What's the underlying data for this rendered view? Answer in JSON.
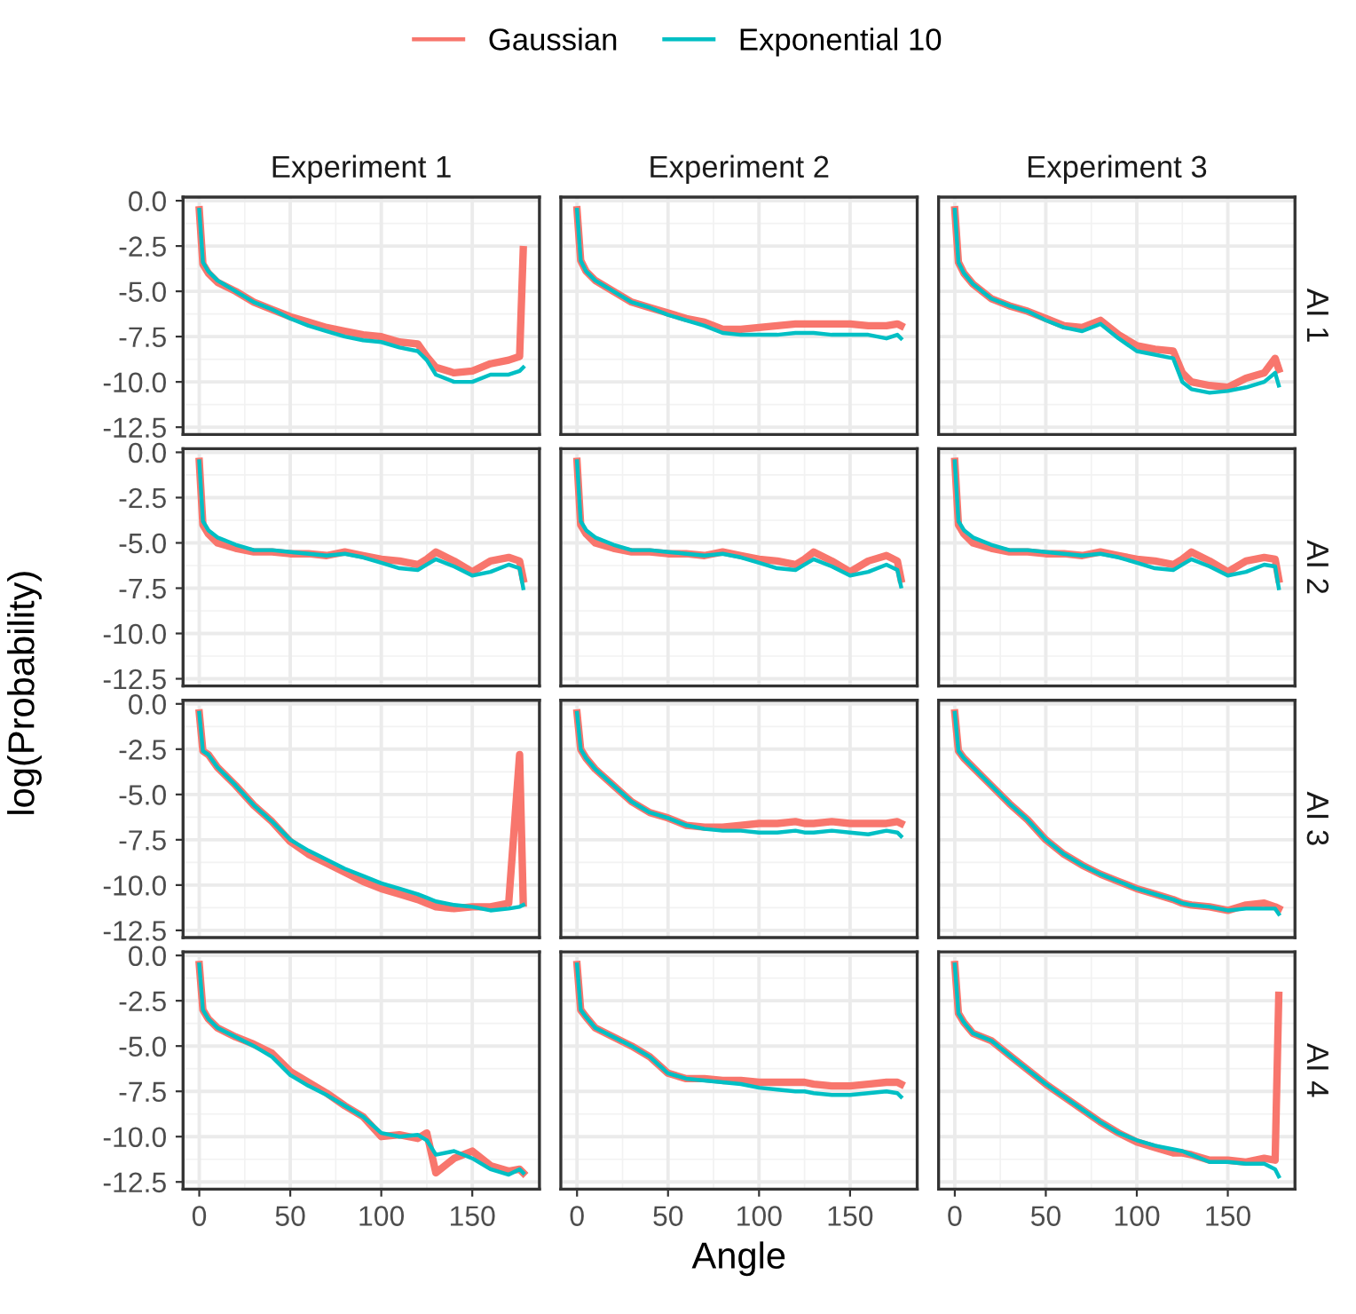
{
  "chart_data": [
    {
      "type": "line",
      "title": "Experiment 1",
      "legend": "top",
      "grid": true,
      "tick_labels": "y",
      "xlim": [
        -8.9,
        186.9
      ],
      "ylim": [
        -12.9,
        0.2
      ],
      "xticks": [
        0,
        50,
        100,
        150
      ],
      "yticks": [
        {
          "value": 0,
          "label": "0.0"
        },
        {
          "value": -2.5,
          "label": "-2.5"
        },
        {
          "value": -5,
          "label": "-5.0"
        },
        {
          "value": -7.5,
          "label": "-7.5"
        },
        {
          "value": -10,
          "label": "-10.0"
        },
        {
          "value": -12.5,
          "label": "-12.5"
        }
      ],
      "x": [
        0,
        2,
        5,
        10,
        20,
        30,
        40,
        50,
        60,
        70,
        80,
        90,
        100,
        110,
        120,
        125,
        130,
        140,
        150,
        160,
        170,
        176,
        178
      ],
      "series": [
        {
          "name": "Gaussian",
          "color": "#f8766d",
          "values": [
            -0.5,
            -3.5,
            -4.0,
            -4.5,
            -5.0,
            -5.6,
            -6.0,
            -6.4,
            -6.7,
            -7.0,
            -7.2,
            -7.4,
            -7.5,
            -7.8,
            -7.9,
            -8.6,
            -9.2,
            -9.5,
            -9.4,
            -9.0,
            -8.8,
            -8.6,
            -2.7
          ]
        },
        {
          "name": "Exponential 10",
          "color": "#00bfc4",
          "values": [
            -0.5,
            -3.4,
            -3.9,
            -4.4,
            -5.0,
            -5.6,
            -6.0,
            -6.5,
            -6.9,
            -7.2,
            -7.5,
            -7.7,
            -7.8,
            -8.1,
            -8.3,
            -8.8,
            -9.6,
            -10.0,
            -10.0,
            -9.6,
            -9.6,
            -9.4,
            -9.2
          ]
        }
      ]
    },
    {
      "type": "line",
      "title": "Experiment 2",
      "grid": true,
      "tick_labels": false,
      "xlim": [
        -8.9,
        186.9
      ],
      "ylim": [
        -12.9,
        0.2
      ],
      "xticks": [
        0,
        50,
        100,
        150
      ],
      "yticks": [
        0,
        -2.5,
        -5,
        -7.5,
        -10,
        -12.5
      ],
      "x": [
        0,
        2,
        5,
        10,
        20,
        30,
        40,
        50,
        60,
        70,
        80,
        90,
        100,
        110,
        120,
        125,
        130,
        140,
        150,
        160,
        170,
        176,
        178
      ],
      "series": [
        {
          "color": "#f8766d",
          "values": [
            -0.5,
            -3.3,
            -3.9,
            -4.4,
            -5.0,
            -5.6,
            -5.9,
            -6.2,
            -6.5,
            -6.7,
            -7.1,
            -7.1,
            -7.0,
            -6.9,
            -6.8,
            -6.8,
            -6.8,
            -6.8,
            -6.8,
            -6.9,
            -6.9,
            -6.8,
            -6.9
          ]
        },
        {
          "color": "#00bfc4",
          "values": [
            -0.5,
            -3.3,
            -3.9,
            -4.4,
            -5.0,
            -5.6,
            -5.9,
            -6.3,
            -6.6,
            -6.9,
            -7.3,
            -7.4,
            -7.4,
            -7.4,
            -7.3,
            -7.3,
            -7.3,
            -7.4,
            -7.4,
            -7.4,
            -7.6,
            -7.4,
            -7.6
          ]
        }
      ]
    },
    {
      "type": "line",
      "title": "Experiment 3",
      "y2label": "AI 1",
      "grid": true,
      "tick_labels": false,
      "xlim": [
        -8.9,
        186.9
      ],
      "ylim": [
        -12.9,
        0.2
      ],
      "xticks": [
        0,
        50,
        100,
        150
      ],
      "yticks": [
        0,
        -2.5,
        -5,
        -7.5,
        -10,
        -12.5
      ],
      "x": [
        0,
        2,
        5,
        10,
        20,
        30,
        40,
        50,
        60,
        70,
        80,
        90,
        100,
        110,
        120,
        125,
        130,
        140,
        150,
        160,
        170,
        176,
        178
      ],
      "series": [
        {
          "color": "#f8766d",
          "values": [
            -0.5,
            -3.4,
            -4.0,
            -4.6,
            -5.4,
            -5.8,
            -6.1,
            -6.5,
            -6.9,
            -7.0,
            -6.6,
            -7.4,
            -8.0,
            -8.2,
            -8.3,
            -9.5,
            -10.0,
            -10.2,
            -10.3,
            -9.8,
            -9.5,
            -8.7,
            -9.3
          ]
        },
        {
          "color": "#00bfc4",
          "values": [
            -0.5,
            -3.4,
            -4.0,
            -4.6,
            -5.4,
            -5.8,
            -6.1,
            -6.6,
            -7.0,
            -7.2,
            -6.8,
            -7.6,
            -8.3,
            -8.5,
            -8.7,
            -10.0,
            -10.4,
            -10.6,
            -10.5,
            -10.3,
            -10.0,
            -9.5,
            -10.2
          ]
        }
      ]
    },
    {
      "type": "line",
      "ylabel": "log(Probability)",
      "grid": true,
      "tick_labels": "y",
      "xlim": [
        -8.9,
        186.9
      ],
      "ylim": [
        -12.9,
        0.2
      ],
      "xticks": [
        0,
        50,
        100,
        150
      ],
      "yticks": [
        {
          "value": 0,
          "label": "0.0"
        },
        {
          "value": -2.5,
          "label": "-2.5"
        },
        {
          "value": -5,
          "label": "-5.0"
        },
        {
          "value": -7.5,
          "label": "-7.5"
        },
        {
          "value": -10,
          "label": "-10.0"
        },
        {
          "value": -12.5,
          "label": "-12.5"
        }
      ],
      "x": [
        0,
        2,
        5,
        10,
        20,
        30,
        40,
        50,
        60,
        70,
        80,
        90,
        100,
        110,
        120,
        125,
        130,
        140,
        150,
        160,
        170,
        176,
        178
      ],
      "series": [
        {
          "color": "#f8766d",
          "values": [
            -0.5,
            -4.0,
            -4.5,
            -5.0,
            -5.3,
            -5.5,
            -5.5,
            -5.6,
            -5.6,
            -5.7,
            -5.5,
            -5.7,
            -5.9,
            -6.0,
            -6.2,
            -5.9,
            -5.5,
            -6.0,
            -6.6,
            -6.0,
            -5.8,
            -6.0,
            -7.0
          ]
        },
        {
          "color": "#00bfc4",
          "values": [
            -0.5,
            -3.8,
            -4.3,
            -4.7,
            -5.1,
            -5.4,
            -5.4,
            -5.5,
            -5.6,
            -5.7,
            -5.6,
            -5.8,
            -6.1,
            -6.4,
            -6.5,
            -6.2,
            -5.9,
            -6.3,
            -6.8,
            -6.6,
            -6.2,
            -6.4,
            -7.5
          ]
        }
      ]
    },
    {
      "type": "line",
      "grid": true,
      "tick_labels": false,
      "xlim": [
        -8.9,
        186.9
      ],
      "ylim": [
        -12.9,
        0.2
      ],
      "xticks": [
        0,
        50,
        100,
        150
      ],
      "yticks": [
        0,
        -2.5,
        -5,
        -7.5,
        -10,
        -12.5
      ],
      "x": [
        0,
        2,
        5,
        10,
        20,
        30,
        40,
        50,
        60,
        70,
        80,
        90,
        100,
        110,
        120,
        125,
        130,
        140,
        150,
        160,
        170,
        176,
        178
      ],
      "series": [
        {
          "color": "#f8766d",
          "values": [
            -0.5,
            -4.0,
            -4.5,
            -5.0,
            -5.3,
            -5.5,
            -5.5,
            -5.6,
            -5.6,
            -5.7,
            -5.5,
            -5.7,
            -5.9,
            -6.0,
            -6.2,
            -5.9,
            -5.5,
            -6.0,
            -6.6,
            -6.0,
            -5.7,
            -6.0,
            -7.0
          ]
        },
        {
          "color": "#00bfc4",
          "values": [
            -0.5,
            -3.8,
            -4.3,
            -4.7,
            -5.1,
            -5.4,
            -5.4,
            -5.5,
            -5.6,
            -5.7,
            -5.6,
            -5.8,
            -6.1,
            -6.4,
            -6.5,
            -6.2,
            -5.9,
            -6.3,
            -6.8,
            -6.6,
            -6.2,
            -6.5,
            -7.4
          ]
        }
      ]
    },
    {
      "type": "line",
      "y2label": "AI 2",
      "grid": true,
      "tick_labels": false,
      "xlim": [
        -8.9,
        186.9
      ],
      "ylim": [
        -12.9,
        0.2
      ],
      "xticks": [
        0,
        50,
        100,
        150
      ],
      "yticks": [
        0,
        -2.5,
        -5,
        -7.5,
        -10,
        -12.5
      ],
      "x": [
        0,
        2,
        5,
        10,
        20,
        30,
        40,
        50,
        60,
        70,
        80,
        90,
        100,
        110,
        120,
        125,
        130,
        140,
        150,
        160,
        170,
        176,
        178
      ],
      "series": [
        {
          "color": "#f8766d",
          "values": [
            -0.5,
            -4.0,
            -4.5,
            -5.0,
            -5.3,
            -5.5,
            -5.5,
            -5.6,
            -5.6,
            -5.7,
            -5.5,
            -5.7,
            -5.9,
            -6.0,
            -6.2,
            -5.9,
            -5.5,
            -6.0,
            -6.6,
            -6.0,
            -5.8,
            -5.9,
            -7.0
          ]
        },
        {
          "color": "#00bfc4",
          "values": [
            -0.5,
            -3.8,
            -4.3,
            -4.7,
            -5.1,
            -5.4,
            -5.4,
            -5.5,
            -5.6,
            -5.7,
            -5.6,
            -5.8,
            -6.1,
            -6.4,
            -6.5,
            -6.2,
            -5.9,
            -6.3,
            -6.8,
            -6.6,
            -6.2,
            -6.3,
            -7.5
          ]
        }
      ]
    },
    {
      "type": "line",
      "grid": true,
      "tick_labels": "y",
      "xlim": [
        -8.9,
        186.9
      ],
      "ylim": [
        -12.9,
        0.2
      ],
      "xticks": [
        0,
        50,
        100,
        150
      ],
      "yticks": [
        {
          "value": 0,
          "label": "0.0"
        },
        {
          "value": -2.5,
          "label": "-2.5"
        },
        {
          "value": -5,
          "label": "-5.0"
        },
        {
          "value": -7.5,
          "label": "-7.5"
        },
        {
          "value": -10,
          "label": "-10.0"
        },
        {
          "value": -12.5,
          "label": "-12.5"
        }
      ],
      "x": [
        0,
        2,
        5,
        10,
        20,
        30,
        40,
        50,
        60,
        70,
        80,
        90,
        100,
        110,
        120,
        125,
        130,
        140,
        150,
        160,
        170,
        176,
        178
      ],
      "series": [
        {
          "color": "#f8766d",
          "values": [
            -0.5,
            -2.6,
            -2.8,
            -3.5,
            -4.5,
            -5.6,
            -6.5,
            -7.6,
            -8.3,
            -8.8,
            -9.3,
            -9.8,
            -10.2,
            -10.5,
            -10.8,
            -11.0,
            -11.2,
            -11.3,
            -11.2,
            -11.2,
            -11.0,
            -2.8,
            -11.0
          ]
        },
        {
          "color": "#00bfc4",
          "values": [
            -0.5,
            -2.6,
            -2.8,
            -3.5,
            -4.5,
            -5.6,
            -6.5,
            -7.5,
            -8.1,
            -8.6,
            -9.1,
            -9.5,
            -9.9,
            -10.2,
            -10.5,
            -10.7,
            -10.9,
            -11.1,
            -11.2,
            -11.4,
            -11.3,
            -11.2,
            -11.1
          ]
        }
      ]
    },
    {
      "type": "line",
      "grid": true,
      "tick_labels": false,
      "xlim": [
        -8.9,
        186.9
      ],
      "ylim": [
        -12.9,
        0.2
      ],
      "xticks": [
        0,
        50,
        100,
        150
      ],
      "yticks": [
        0,
        -2.5,
        -5,
        -7.5,
        -10,
        -12.5
      ],
      "x": [
        0,
        2,
        5,
        10,
        20,
        30,
        40,
        50,
        60,
        70,
        80,
        90,
        100,
        110,
        120,
        125,
        130,
        140,
        150,
        160,
        170,
        176,
        178
      ],
      "series": [
        {
          "color": "#f8766d",
          "values": [
            -0.5,
            -2.5,
            -3.0,
            -3.6,
            -4.5,
            -5.4,
            -6.0,
            -6.3,
            -6.7,
            -6.8,
            -6.8,
            -6.7,
            -6.6,
            -6.6,
            -6.5,
            -6.6,
            -6.6,
            -6.5,
            -6.6,
            -6.6,
            -6.6,
            -6.5,
            -6.6
          ]
        },
        {
          "color": "#00bfc4",
          "values": [
            -0.5,
            -2.5,
            -3.0,
            -3.6,
            -4.5,
            -5.4,
            -6.0,
            -6.3,
            -6.7,
            -6.9,
            -7.0,
            -7.0,
            -7.1,
            -7.1,
            -7.0,
            -7.1,
            -7.1,
            -7.0,
            -7.1,
            -7.2,
            -7.0,
            -7.1,
            -7.3
          ]
        }
      ]
    },
    {
      "type": "line",
      "y2label": "AI 3",
      "grid": true,
      "tick_labels": false,
      "xlim": [
        -8.9,
        186.9
      ],
      "ylim": [
        -12.9,
        0.2
      ],
      "xticks": [
        0,
        50,
        100,
        150
      ],
      "yticks": [
        0,
        -2.5,
        -5,
        -7.5,
        -10,
        -12.5
      ],
      "x": [
        0,
        2,
        5,
        10,
        20,
        30,
        40,
        50,
        60,
        70,
        80,
        90,
        100,
        110,
        120,
        125,
        130,
        140,
        150,
        160,
        170,
        176,
        178
      ],
      "series": [
        {
          "color": "#f8766d",
          "values": [
            -0.5,
            -2.6,
            -3.0,
            -3.5,
            -4.5,
            -5.5,
            -6.4,
            -7.5,
            -8.3,
            -8.9,
            -9.4,
            -9.8,
            -10.2,
            -10.5,
            -10.8,
            -11.0,
            -11.1,
            -11.2,
            -11.4,
            -11.1,
            -11.0,
            -11.2,
            -11.3
          ]
        },
        {
          "color": "#00bfc4",
          "values": [
            -0.5,
            -2.6,
            -3.0,
            -3.5,
            -4.5,
            -5.5,
            -6.4,
            -7.5,
            -8.3,
            -8.9,
            -9.4,
            -9.8,
            -10.2,
            -10.5,
            -10.8,
            -11.0,
            -11.1,
            -11.2,
            -11.4,
            -11.3,
            -11.3,
            -11.3,
            -11.6
          ]
        }
      ]
    },
    {
      "type": "line",
      "grid": true,
      "xlim": [
        -8.9,
        186.9
      ],
      "ylim": [
        -12.9,
        0.2
      ],
      "xticks": [
        0,
        50,
        100,
        150
      ],
      "yticks": [
        {
          "value": 0,
          "label": "0.0"
        },
        {
          "value": -2.5,
          "label": "-2.5"
        },
        {
          "value": -5,
          "label": "-5.0"
        },
        {
          "value": -7.5,
          "label": "-7.5"
        },
        {
          "value": -10,
          "label": "-10.0"
        },
        {
          "value": -12.5,
          "label": "-12.5"
        }
      ],
      "x": [
        0,
        2,
        5,
        10,
        20,
        30,
        40,
        50,
        60,
        70,
        80,
        90,
        100,
        110,
        120,
        125,
        130,
        140,
        150,
        160,
        170,
        176,
        178
      ],
      "series": [
        {
          "color": "#f8766d",
          "values": [
            -0.5,
            -3.0,
            -3.5,
            -4.0,
            -4.5,
            -4.9,
            -5.4,
            -6.4,
            -7.0,
            -7.6,
            -8.3,
            -8.9,
            -10.0,
            -9.9,
            -10.1,
            -9.8,
            -12.0,
            -11.2,
            -10.8,
            -11.6,
            -11.9,
            -11.8,
            -12.0
          ]
        },
        {
          "color": "#00bfc4",
          "values": [
            -0.5,
            -3.0,
            -3.5,
            -4.0,
            -4.5,
            -5.0,
            -5.6,
            -6.6,
            -7.2,
            -7.7,
            -8.3,
            -8.9,
            -9.8,
            -10.0,
            -9.9,
            -10.2,
            -11.0,
            -10.8,
            -11.2,
            -11.8,
            -12.1,
            -11.8,
            -12.0
          ]
        }
      ]
    },
    {
      "type": "line",
      "xlabel": "Angle",
      "grid": true,
      "tick_labels": "x",
      "xlim": [
        -8.9,
        186.9
      ],
      "ylim": [
        -12.9,
        0.2
      ],
      "xticks": [
        0,
        50,
        100,
        150
      ],
      "yticks": [
        0,
        -2.5,
        -5,
        -7.5,
        -10,
        -12.5
      ],
      "x": [
        0,
        2,
        5,
        10,
        20,
        30,
        40,
        50,
        60,
        70,
        80,
        90,
        100,
        110,
        120,
        125,
        130,
        140,
        150,
        160,
        170,
        176,
        178
      ],
      "series": [
        {
          "color": "#f8766d",
          "values": [
            -0.5,
            -3.0,
            -3.4,
            -4.0,
            -4.5,
            -5.0,
            -5.6,
            -6.5,
            -6.8,
            -6.8,
            -6.9,
            -6.9,
            -7.0,
            -7.0,
            -7.0,
            -7.0,
            -7.1,
            -7.2,
            -7.2,
            -7.1,
            -7.0,
            -7.0,
            -7.1
          ]
        },
        {
          "color": "#00bfc4",
          "values": [
            -0.5,
            -3.0,
            -3.4,
            -4.0,
            -4.5,
            -5.0,
            -5.6,
            -6.5,
            -6.8,
            -6.9,
            -7.0,
            -7.1,
            -7.3,
            -7.4,
            -7.5,
            -7.5,
            -7.6,
            -7.7,
            -7.7,
            -7.6,
            -7.5,
            -7.6,
            -7.8
          ]
        }
      ]
    },
    {
      "type": "line",
      "y2label": "AI 4",
      "grid": true,
      "tick_labels": "x",
      "xlim": [
        -8.9,
        186.9
      ],
      "ylim": [
        -12.9,
        0.2
      ],
      "xticks": [
        0,
        50,
        100,
        150
      ],
      "yticks": [
        0,
        -2.5,
        -5,
        -7.5,
        -10,
        -12.5
      ],
      "x": [
        0,
        2,
        5,
        10,
        20,
        30,
        40,
        50,
        60,
        70,
        80,
        90,
        100,
        110,
        120,
        125,
        130,
        140,
        150,
        160,
        170,
        176,
        178
      ],
      "series": [
        {
          "color": "#f8766d",
          "values": [
            -0.5,
            -3.2,
            -3.7,
            -4.3,
            -4.7,
            -5.5,
            -6.3,
            -7.1,
            -7.8,
            -8.5,
            -9.2,
            -9.8,
            -10.3,
            -10.6,
            -10.9,
            -10.9,
            -11.0,
            -11.3,
            -11.3,
            -11.4,
            -11.2,
            -11.3,
            -2.2
          ]
        },
        {
          "color": "#00bfc4",
          "values": [
            -0.5,
            -3.2,
            -3.7,
            -4.3,
            -4.7,
            -5.5,
            -6.3,
            -7.1,
            -7.8,
            -8.5,
            -9.2,
            -9.8,
            -10.2,
            -10.5,
            -10.7,
            -10.8,
            -11.0,
            -11.4,
            -11.4,
            -11.5,
            -11.5,
            -11.8,
            -12.2
          ]
        }
      ]
    }
  ]
}
